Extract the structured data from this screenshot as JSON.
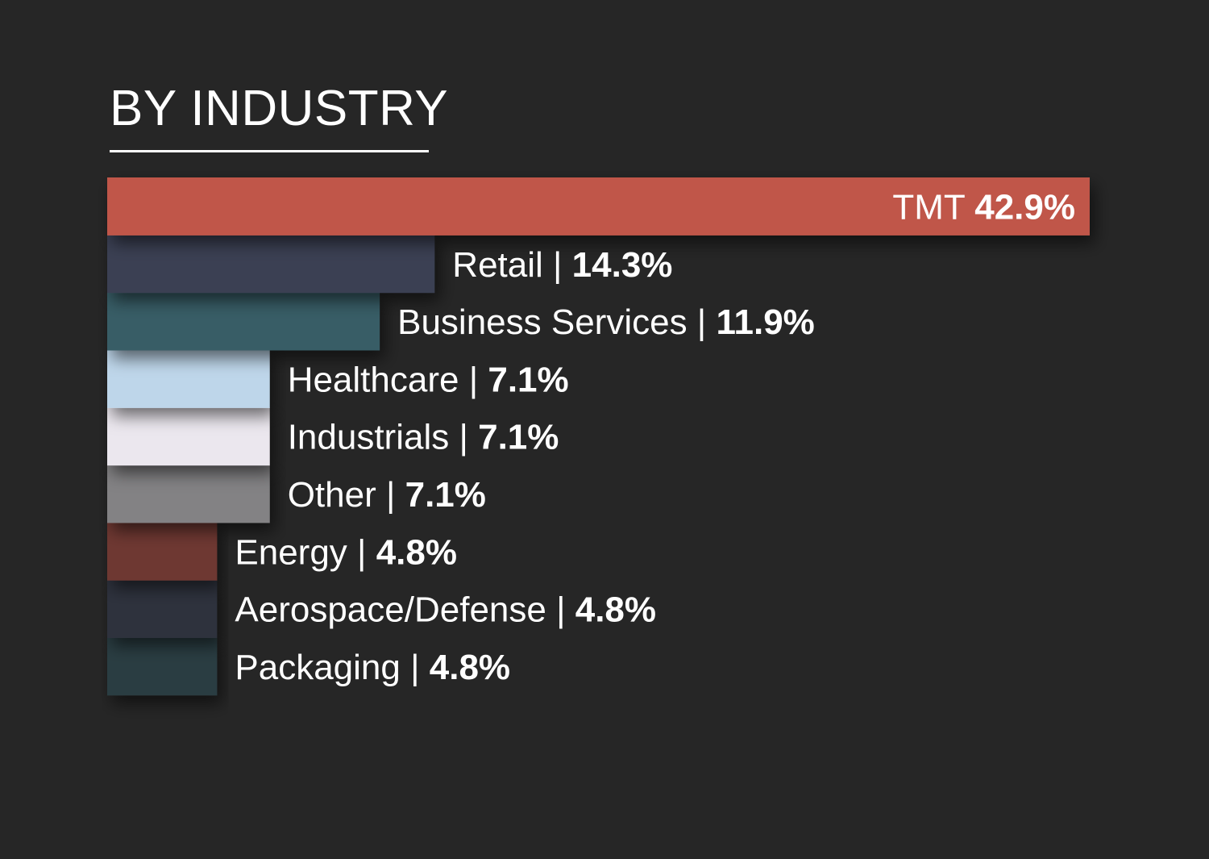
{
  "title": "BY INDUSTRY",
  "chart_data": {
    "type": "bar",
    "orientation": "horizontal",
    "title": "BY INDUSTRY",
    "xlabel": "",
    "ylabel": "",
    "value_suffix": "%",
    "xlim": [
      0,
      42.9
    ],
    "grid": false,
    "legend": "none",
    "separator": " | ",
    "categories": [
      "TMT",
      "Retail",
      "Business Services",
      "Healthcare",
      "Industrials",
      "Other",
      "Energy",
      "Aerospace/Defense",
      "Packaging"
    ],
    "values": [
      42.9,
      14.3,
      11.9,
      7.1,
      7.1,
      7.1,
      4.8,
      4.8,
      4.8
    ],
    "colors": [
      "#c0574a",
      "#3a3f52",
      "#375d66",
      "#bed6ea",
      "#ebe7ee",
      "#838284",
      "#6e3832",
      "#2d313c",
      "#2b3e42"
    ],
    "label_inside_first": true
  }
}
